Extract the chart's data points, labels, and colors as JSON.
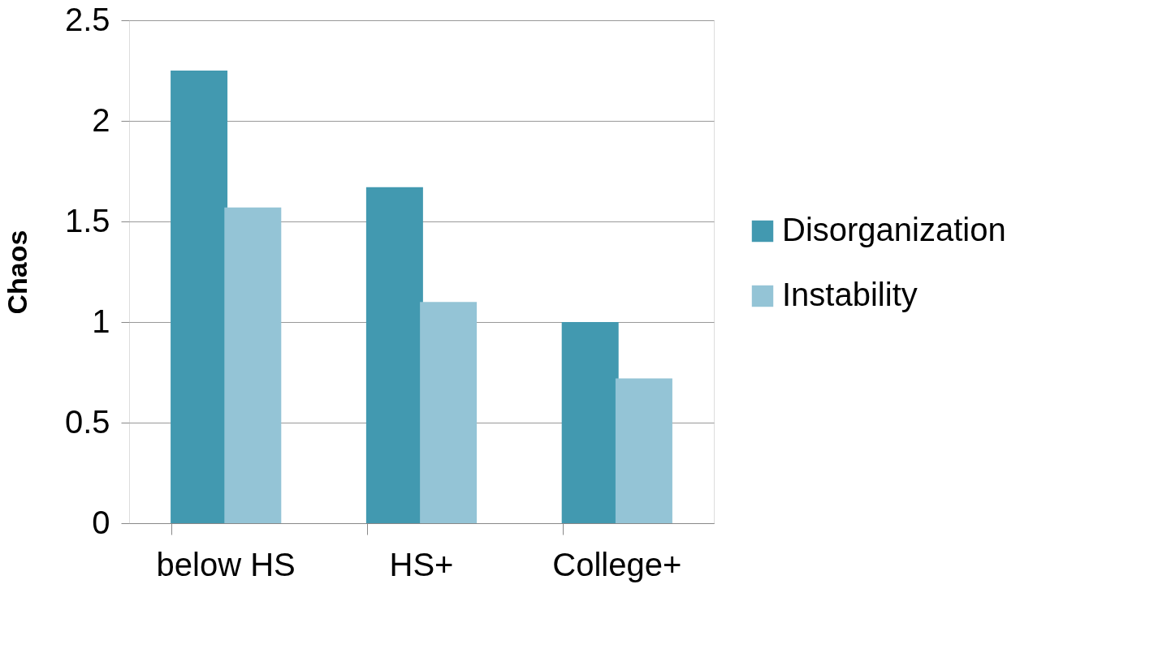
{
  "chart_data": {
    "type": "bar",
    "ylabel": "Chaos",
    "categories": [
      "below HS",
      "HS+",
      "College+"
    ],
    "series": [
      {
        "name": "Disorganization",
        "color": "#4299b0",
        "values": [
          2.25,
          1.67,
          1.0
        ]
      },
      {
        "name": "Instability",
        "color": "#94c4d6",
        "values": [
          1.57,
          1.1,
          0.72
        ]
      }
    ],
    "ylim": [
      0,
      2.5
    ],
    "yticks": [
      0,
      0.5,
      1,
      1.5,
      2,
      2.5
    ],
    "grid": "y",
    "legend": "right"
  }
}
